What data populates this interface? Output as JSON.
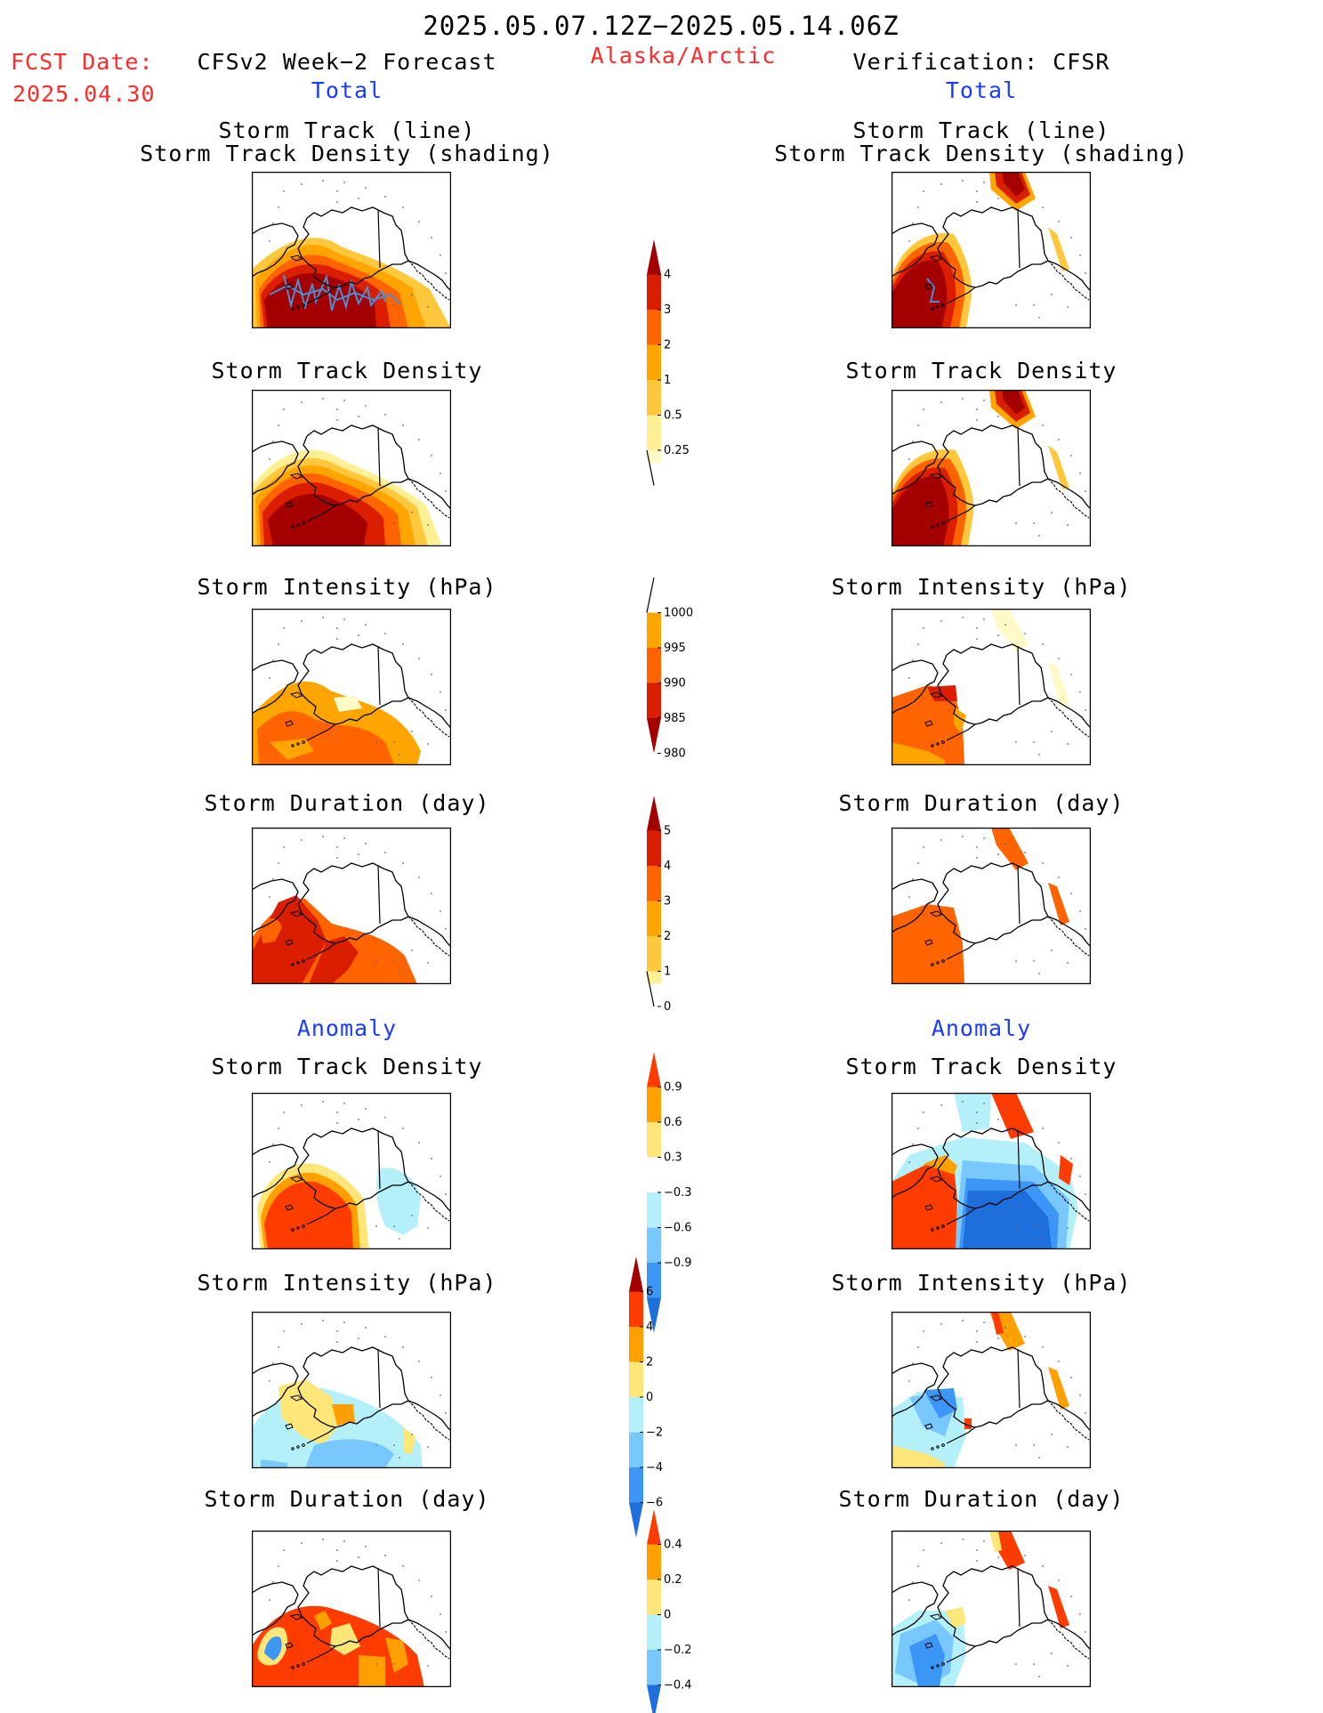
{
  "header": {
    "date_range": "2025.05.07.12Z−2025.05.14.06Z",
    "fcst_label": "FCST Date:",
    "fcst_date": "2025.04.30",
    "left_title": "CFSv2 Week−2 Forecast",
    "region": "Alaska/Arctic",
    "right_title": "Verification: CFSR",
    "total_left": "Total",
    "total_right": "Total"
  },
  "panels": {
    "track_line": "Storm Track (line)",
    "track_shading": "Storm Track Density (shading)",
    "density": "Storm Track Density",
    "intensity": "Storm Intensity (hPa)",
    "duration": "Storm Duration (day)",
    "anomaly_left": "Anomaly",
    "anomaly_right": "Anomaly"
  },
  "colorbars": {
    "density": {
      "labels": [
        "4",
        "3",
        "2",
        "1",
        "0.5",
        "0.25"
      ],
      "colors": [
        "#a50000",
        "#dc1e00",
        "#ff6400",
        "#ffa500",
        "#ffc83c",
        "#fff096",
        "#fffac8"
      ]
    },
    "intensity": {
      "labels": [
        "1000",
        "995",
        "990",
        "985",
        "980"
      ],
      "colors": [
        "#fffac8",
        "#ffa500",
        "#ff6400",
        "#dc1e00",
        "#a50000"
      ]
    },
    "duration": {
      "labels": [
        "5",
        "4",
        "3",
        "2",
        "1",
        "0"
      ],
      "colors": [
        "#a50000",
        "#dc1e00",
        "#ff6400",
        "#ffa500",
        "#ffc83c",
        "#fff096"
      ]
    },
    "density_anom": {
      "labels": [
        "0.9",
        "0.6",
        "0.3",
        "−0.3",
        "−0.6",
        "−0.9"
      ],
      "colors": [
        "#ff3c00",
        "#ffa000",
        "#ffe678",
        "#ffffff",
        "#b4f0fa",
        "#78c8ff",
        "#3c96f5",
        "#1e6edc"
      ]
    },
    "intensity_anom": {
      "labels": [
        "6",
        "4",
        "2",
        "0",
        "−2",
        "−4",
        "−6"
      ],
      "colors": [
        "#a50000",
        "#ff3c00",
        "#ffa000",
        "#ffe678",
        "#b4f0fa",
        "#78c8ff",
        "#3c96f5",
        "#1e6edc"
      ]
    },
    "duration_anom": {
      "labels": [
        "0.4",
        "0.2",
        "0",
        "−0.2",
        "−0.4"
      ],
      "colors": [
        "#ff3c00",
        "#ffa000",
        "#ffe678",
        "#b4f0fa",
        "#78c8ff",
        "#1e6edc"
      ]
    }
  },
  "colors": {
    "c1": "#fff096",
    "c2": "#ffc83c",
    "c3": "#ffa500",
    "c4": "#ff6400",
    "c5": "#dc1e00",
    "c6": "#a50000",
    "a_pos3": "#ff3c00",
    "a_pos2": "#ffa000",
    "a_pos1": "#ffe678",
    "a_neg1": "#b4f0fa",
    "a_neg2": "#78c8ff",
    "a_neg3": "#3c96f5",
    "a_neg4": "#1e6edc",
    "track_line": "#4a8fd6"
  }
}
